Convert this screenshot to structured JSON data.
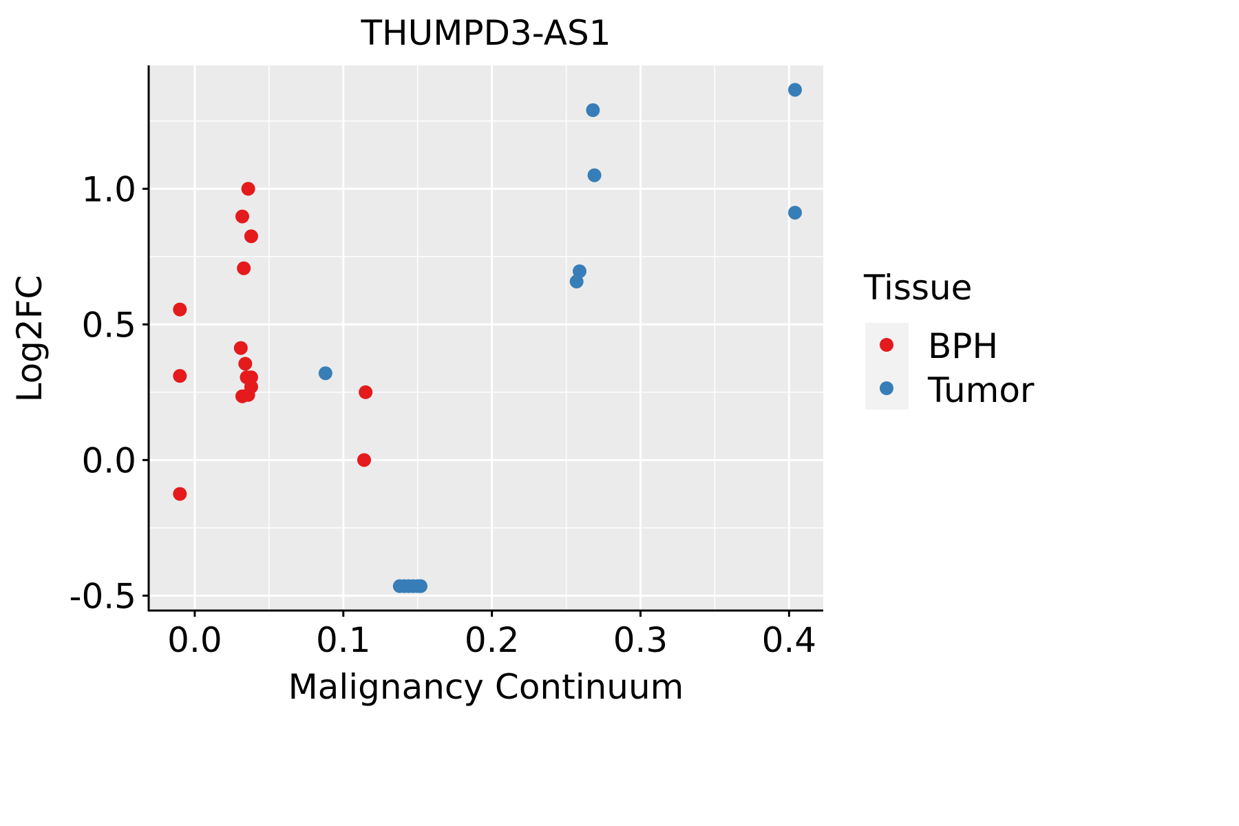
{
  "chart_data": {
    "type": "scatter",
    "title": "THUMPD3-AS1",
    "xlabel": "Malignancy Continuum",
    "ylabel": "Log2FC",
    "xlim": [
      -0.031,
      0.423
    ],
    "ylim": [
      -0.555,
      1.455
    ],
    "xticks": [
      0.0,
      0.1,
      0.2,
      0.3,
      0.4
    ],
    "xtick_labels": [
      "0.0",
      "0.1",
      "0.2",
      "0.3",
      "0.4"
    ],
    "yticks": [
      -0.5,
      0.0,
      0.5,
      1.0
    ],
    "ytick_labels": [
      "-0.5",
      "0.0",
      "0.5",
      "1.0"
    ],
    "grid": true,
    "legend": {
      "title": "Tissue",
      "position": "right",
      "entries": [
        "BPH",
        "Tumor"
      ]
    },
    "colors": {
      "BPH": "#E41A1C",
      "Tumor": "#377EB8",
      "panel": "#EBEBEB",
      "grid": "#FFFFFF"
    },
    "series": [
      {
        "name": "BPH",
        "points": [
          {
            "x": -0.01,
            "y": 0.555
          },
          {
            "x": -0.01,
            "y": 0.31
          },
          {
            "x": -0.01,
            "y": -0.125
          },
          {
            "x": 0.036,
            "y": 1.0
          },
          {
            "x": 0.032,
            "y": 0.898
          },
          {
            "x": 0.038,
            "y": 0.825
          },
          {
            "x": 0.033,
            "y": 0.707
          },
          {
            "x": 0.031,
            "y": 0.413
          },
          {
            "x": 0.034,
            "y": 0.355
          },
          {
            "x": 0.035,
            "y": 0.305
          },
          {
            "x": 0.038,
            "y": 0.305
          },
          {
            "x": 0.038,
            "y": 0.27
          },
          {
            "x": 0.036,
            "y": 0.24
          },
          {
            "x": 0.032,
            "y": 0.235
          },
          {
            "x": 0.115,
            "y": 0.25
          },
          {
            "x": 0.114,
            "y": 0.0
          }
        ]
      },
      {
        "name": "Tumor",
        "points": [
          {
            "x": 0.088,
            "y": 0.32
          },
          {
            "x": 0.138,
            "y": -0.465
          },
          {
            "x": 0.141,
            "y": -0.465
          },
          {
            "x": 0.144,
            "y": -0.465
          },
          {
            "x": 0.147,
            "y": -0.465
          },
          {
            "x": 0.15,
            "y": -0.465
          },
          {
            "x": 0.152,
            "y": -0.465
          },
          {
            "x": 0.257,
            "y": 0.658
          },
          {
            "x": 0.259,
            "y": 0.696
          },
          {
            "x": 0.268,
            "y": 1.29
          },
          {
            "x": 0.269,
            "y": 1.05
          },
          {
            "x": 0.404,
            "y": 1.365
          },
          {
            "x": 0.404,
            "y": 0.912
          }
        ]
      }
    ]
  }
}
